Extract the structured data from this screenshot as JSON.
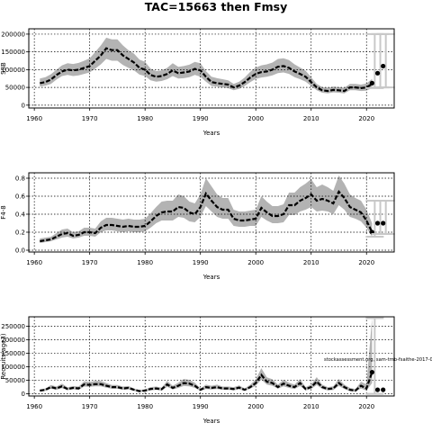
{
  "title": "TAC=15663 then Fmsy",
  "annotation": "stockassessment.org, sam-tmb-fsaithe-2017-0",
  "colors": {
    "band": "#b3b3b3",
    "line": "#000000",
    "grid": "#000000",
    "bar": "#c8c8c8"
  },
  "chart_data": [
    {
      "type": "line",
      "xlabel": "Years",
      "ylabel": "SSB",
      "xticks": [
        1960,
        1970,
        1980,
        1990,
        2000,
        2010,
        2020
      ],
      "yticks": [
        0,
        50000,
        100000,
        150000,
        200000
      ],
      "ytick_labels": [
        "0",
        "50000",
        "100000",
        "150000",
        "200000"
      ],
      "xlim": [
        1959,
        2025
      ],
      "ylim": [
        -8000,
        215000
      ],
      "grid": true,
      "series": [
        {
          "years": [
            1961,
            1962,
            1963,
            1964,
            1965,
            1966,
            1967,
            1968,
            1969,
            1970,
            1971,
            1972,
            1973,
            1974,
            1975,
            1976,
            1977,
            1978,
            1979,
            1980,
            1981,
            1982,
            1983,
            1984,
            1985,
            1986,
            1987,
            1988,
            1989,
            1990,
            1991,
            1992,
            1993,
            1994,
            1995,
            1996,
            1997,
            1998,
            1999,
            2000,
            2001,
            2002,
            2003,
            2004,
            2005,
            2006,
            2007,
            2008,
            2009,
            2010,
            2011,
            2012,
            2013,
            2014,
            2015,
            2016,
            2017,
            2018,
            2019,
            2020,
            2021
          ],
          "values": [
            62000,
            65000,
            72000,
            85000,
            95000,
            100000,
            98000,
            100000,
            105000,
            110000,
            125000,
            140000,
            160000,
            155000,
            155000,
            140000,
            130000,
            120000,
            105000,
            100000,
            85000,
            80000,
            82000,
            88000,
            98000,
            90000,
            92000,
            95000,
            102000,
            98000,
            80000,
            65000,
            62000,
            60000,
            58000,
            50000,
            55000,
            65000,
            78000,
            88000,
            93000,
            95000,
            100000,
            108000,
            110000,
            105000,
            95000,
            88000,
            80000,
            65000,
            50000,
            42000,
            40000,
            43000,
            42000,
            40000,
            50000,
            50000,
            48000,
            50000,
            60000
          ],
          "lower": [
            52000,
            55000,
            60000,
            72000,
            82000,
            85000,
            82000,
            84000,
            88000,
            92000,
            103000,
            115000,
            130000,
            125000,
            125000,
            113000,
            105000,
            98000,
            86000,
            82000,
            70000,
            66000,
            68000,
            73000,
            82000,
            75000,
            76000,
            79000,
            85000,
            80000,
            66000,
            54000,
            52000,
            50000,
            48000,
            42000,
            46000,
            54000,
            65000,
            74000,
            78000,
            80000,
            84000,
            90000,
            92000,
            88000,
            79000,
            73000,
            66000,
            54000,
            42000,
            35000,
            33000,
            36000,
            35000,
            33000,
            42000,
            42000,
            40000,
            41000,
            48000
          ],
          "upper": [
            75000,
            79000,
            87000,
            100000,
            112000,
            118000,
            116000,
            119000,
            125000,
            132000,
            150000,
            168000,
            190000,
            185000,
            185000,
            168000,
            155000,
            145000,
            128000,
            122000,
            103000,
            96000,
            98000,
            105000,
            118000,
            108000,
            110000,
            114000,
            122000,
            118000,
            96000,
            80000,
            76000,
            73000,
            70000,
            60000,
            66000,
            78000,
            94000,
            106000,
            112000,
            115000,
            120000,
            130000,
            132000,
            127000,
            115000,
            106000,
            97000,
            79000,
            60000,
            51000,
            49000,
            52000,
            51000,
            49000,
            60000,
            60000,
            58000,
            61000,
            74000
          ]
        }
      ],
      "forecast": [
        {
          "year": 2021,
          "value": 62000,
          "low": 48000,
          "high": 200000
        },
        {
          "year": 2022,
          "value": 90000,
          "low": 50000,
          "high": 200000
        },
        {
          "year": 2023,
          "value": 110000,
          "low": 50000,
          "high": 200000
        }
      ]
    },
    {
      "type": "line",
      "xlabel": "Years",
      "ylabel": "F4-8",
      "xticks": [
        1960,
        1970,
        1980,
        1990,
        2000,
        2010,
        2020
      ],
      "yticks": [
        0,
        0.2,
        0.4,
        0.6,
        0.8
      ],
      "ytick_labels": [
        "0.0",
        "0.2",
        "0.4",
        "0.6",
        "0.8"
      ],
      "xlim": [
        1959,
        2025
      ],
      "ylim": [
        -0.02,
        0.86
      ],
      "grid": true,
      "series": [
        {
          "years": [
            1961,
            1962,
            1963,
            1964,
            1965,
            1966,
            1967,
            1968,
            1969,
            1970,
            1971,
            1972,
            1973,
            1974,
            1975,
            1976,
            1977,
            1978,
            1979,
            1980,
            1981,
            1982,
            1983,
            1984,
            1985,
            1986,
            1987,
            1988,
            1989,
            1990,
            1991,
            1992,
            1993,
            1994,
            1995,
            1996,
            1997,
            1998,
            1999,
            2000,
            2001,
            2002,
            2003,
            2004,
            2005,
            2006,
            2007,
            2008,
            2009,
            2010,
            2011,
            2012,
            2013,
            2014,
            2015,
            2016,
            2017,
            2018,
            2019,
            2020,
            2021
          ],
          "values": [
            0.1,
            0.11,
            0.12,
            0.15,
            0.18,
            0.19,
            0.16,
            0.17,
            0.2,
            0.2,
            0.19,
            0.25,
            0.28,
            0.28,
            0.27,
            0.26,
            0.27,
            0.26,
            0.26,
            0.27,
            0.32,
            0.38,
            0.42,
            0.43,
            0.43,
            0.48,
            0.47,
            0.42,
            0.4,
            0.48,
            0.63,
            0.55,
            0.48,
            0.45,
            0.45,
            0.35,
            0.33,
            0.33,
            0.34,
            0.35,
            0.47,
            0.42,
            0.38,
            0.38,
            0.4,
            0.5,
            0.5,
            0.55,
            0.58,
            0.62,
            0.55,
            0.57,
            0.55,
            0.52,
            0.65,
            0.58,
            0.48,
            0.45,
            0.42,
            0.33,
            0.2
          ],
          "lower": [
            0.08,
            0.09,
            0.1,
            0.12,
            0.14,
            0.15,
            0.13,
            0.14,
            0.16,
            0.16,
            0.15,
            0.2,
            0.22,
            0.22,
            0.21,
            0.2,
            0.21,
            0.2,
            0.2,
            0.21,
            0.25,
            0.3,
            0.33,
            0.33,
            0.33,
            0.37,
            0.36,
            0.32,
            0.31,
            0.37,
            0.49,
            0.43,
            0.37,
            0.35,
            0.35,
            0.27,
            0.26,
            0.26,
            0.27,
            0.27,
            0.37,
            0.33,
            0.3,
            0.3,
            0.31,
            0.39,
            0.39,
            0.43,
            0.45,
            0.48,
            0.43,
            0.44,
            0.43,
            0.4,
            0.5,
            0.45,
            0.37,
            0.35,
            0.32,
            0.25,
            0.15
          ],
          "upper": [
            0.13,
            0.14,
            0.15,
            0.19,
            0.23,
            0.24,
            0.2,
            0.21,
            0.25,
            0.25,
            0.24,
            0.32,
            0.36,
            0.36,
            0.35,
            0.34,
            0.35,
            0.34,
            0.34,
            0.35,
            0.41,
            0.48,
            0.54,
            0.55,
            0.55,
            0.62,
            0.6,
            0.54,
            0.52,
            0.62,
            0.8,
            0.71,
            0.62,
            0.58,
            0.58,
            0.45,
            0.43,
            0.43,
            0.44,
            0.45,
            0.6,
            0.54,
            0.49,
            0.49,
            0.51,
            0.64,
            0.64,
            0.7,
            0.74,
            0.79,
            0.7,
            0.73,
            0.7,
            0.66,
            0.83,
            0.74,
            0.62,
            0.58,
            0.55,
            0.45,
            0.3
          ]
        }
      ],
      "forecast": [
        {
          "year": 2021,
          "value": 0.2,
          "low": 0.15,
          "high": 0.55
        },
        {
          "year": 2022,
          "value": 0.3,
          "low": 0.18,
          "high": 0.55
        },
        {
          "year": 2023,
          "value": 0.3,
          "low": 0.18,
          "high": 0.55
        }
      ]
    },
    {
      "type": "line",
      "xlabel": "Years",
      "ylabel": "Recruits(age3)",
      "xticks": [
        1960,
        1970,
        1980,
        1990,
        2000,
        2010,
        2020
      ],
      "yticks": [
        0,
        50000,
        100000,
        150000,
        200000,
        250000
      ],
      "ytick_labels": [
        "0",
        "50000",
        "100000",
        "150000",
        "200000",
        "250000"
      ],
      "xlim": [
        1959,
        2025
      ],
      "ylim": [
        -8000,
        285000
      ],
      "grid": true,
      "series": [
        {
          "years": [
            1961,
            1962,
            1963,
            1964,
            1965,
            1966,
            1967,
            1968,
            1969,
            1970,
            1971,
            1972,
            1973,
            1974,
            1975,
            1976,
            1977,
            1978,
            1979,
            1980,
            1981,
            1982,
            1983,
            1984,
            1985,
            1986,
            1987,
            1988,
            1989,
            1990,
            1991,
            1992,
            1993,
            1994,
            1995,
            1996,
            1997,
            1998,
            1999,
            2000,
            2001,
            2002,
            2003,
            2004,
            2005,
            2006,
            2007,
            2008,
            2009,
            2010,
            2011,
            2012,
            2013,
            2014,
            2015,
            2016,
            2017,
            2018,
            2019,
            2020,
            2021
          ],
          "values": [
            12000,
            15000,
            25000,
            20000,
            28000,
            18000,
            22000,
            20000,
            35000,
            33000,
            36000,
            36000,
            30000,
            25000,
            25000,
            20000,
            22000,
            15000,
            10000,
            12000,
            18000,
            20000,
            17000,
            35000,
            22000,
            30000,
            40000,
            38000,
            30000,
            15000,
            25000,
            22000,
            25000,
            20000,
            20000,
            18000,
            23000,
            15000,
            25000,
            40000,
            70000,
            45000,
            40000,
            25000,
            38000,
            30000,
            25000,
            40000,
            18000,
            25000,
            45000,
            25000,
            18000,
            20000,
            40000,
            25000,
            15000,
            12000,
            30000,
            20000,
            80000
          ],
          "lower": [
            9000,
            11000,
            19000,
            15000,
            21000,
            14000,
            17000,
            15000,
            27000,
            26000,
            28000,
            28000,
            23000,
            19000,
            19000,
            15000,
            17000,
            11000,
            7000,
            9000,
            13000,
            15000,
            12000,
            26000,
            16000,
            22000,
            29000,
            28000,
            22000,
            11000,
            18000,
            16000,
            18000,
            15000,
            15000,
            13000,
            17000,
            11000,
            19000,
            30000,
            53000,
            34000,
            30000,
            19000,
            28000,
            22000,
            18000,
            29000,
            13000,
            18000,
            33000,
            18000,
            13000,
            14000,
            29000,
            18000,
            10000,
            8000,
            20000,
            12000,
            40000
          ],
          "upper": [
            16000,
            20000,
            33000,
            27000,
            38000,
            24000,
            29000,
            27000,
            46000,
            44000,
            48000,
            48000,
            40000,
            33000,
            33000,
            27000,
            29000,
            20000,
            14000,
            16000,
            25000,
            27000,
            23000,
            48000,
            30000,
            41000,
            55000,
            52000,
            41000,
            20000,
            34000,
            30000,
            34000,
            27000,
            27000,
            25000,
            31000,
            20000,
            34000,
            54000,
            95000,
            61000,
            54000,
            34000,
            52000,
            41000,
            34000,
            55000,
            25000,
            34000,
            62000,
            34000,
            25000,
            28000,
            55000,
            34000,
            22000,
            18000,
            45000,
            35000,
            280000
          ]
        }
      ],
      "forecast": [
        {
          "year": 2021,
          "value": 80000,
          "low": 0,
          "high": 280000
        },
        {
          "year": 2022,
          "value": 15000,
          "low": 0,
          "high": 0
        },
        {
          "year": 2023,
          "value": 15000,
          "low": 0,
          "high": 0
        }
      ]
    }
  ]
}
